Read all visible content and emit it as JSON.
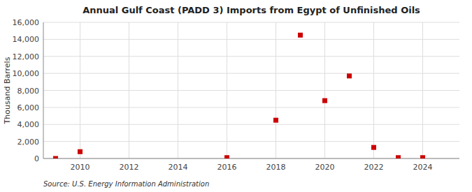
{
  "chart_data": {
    "type": "scatter",
    "title": "Annual Gulf Coast (PADD 3) Imports from Egypt of Unfinished Oils",
    "y_label": "Thousand Barrels",
    "annotations": [
      "Source: U.S. Energy Information Administration"
    ],
    "x": [
      2009,
      2010,
      2016,
      2018,
      2019,
      2020,
      2021,
      2022,
      2023,
      2024
    ],
    "values": [
      0,
      800,
      100,
      4500,
      14500,
      6800,
      9700,
      1300,
      100,
      100
    ],
    "color": "#cc0000",
    "marker": "square",
    "xlim": [
      2008.5,
      2025.5
    ],
    "ylim": [
      0,
      16000
    ],
    "xticks": [
      2010,
      2012,
      2014,
      2016,
      2018,
      2020,
      2022,
      2024
    ],
    "yticks": [
      0,
      {
        "value": 2000,
        "label": "2,000"
      },
      {
        "value": 4000,
        "label": "4,000"
      },
      {
        "value": 6000,
        "label": "6,000"
      },
      {
        "value": 8000,
        "label": "8,000"
      },
      {
        "value": 10000,
        "label": "10,000"
      },
      {
        "value": 12000,
        "label": "12,000"
      },
      {
        "value": 14000,
        "label": "14,000"
      },
      {
        "value": 16000,
        "label": "16,000"
      }
    ],
    "grid": true
  }
}
